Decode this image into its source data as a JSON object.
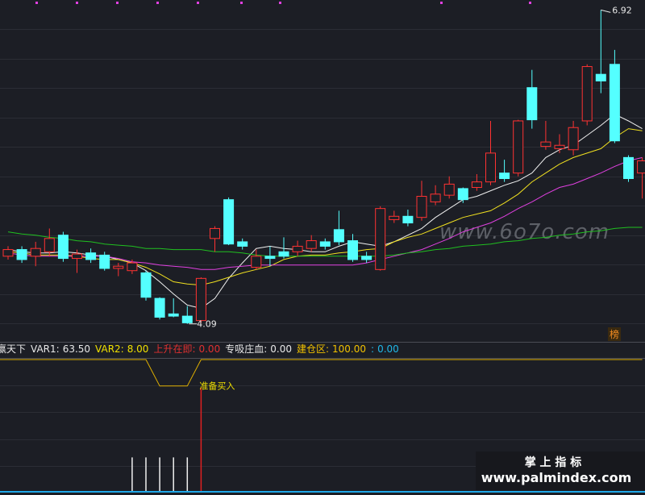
{
  "chart_data": {
    "type": "candlestick",
    "open": [
      4.7,
      4.76,
      4.7,
      4.74,
      4.89,
      4.68,
      4.73,
      4.71,
      4.59,
      4.57,
      4.55,
      4.32,
      4.18,
      4.16,
      4.12,
      4.86,
      5.21,
      4.83,
      4.6,
      4.7,
      4.74,
      4.74,
      4.77,
      4.83,
      4.94,
      4.84,
      4.7,
      4.58,
      5.03,
      5.06,
      5.05,
      5.19,
      5.25,
      5.31,
      5.32,
      5.37,
      5.45,
      5.45,
      6.22,
      5.69,
      5.67,
      5.66,
      5.92,
      6.34,
      6.43,
      5.59,
      5.45
    ],
    "high": [
      4.79,
      4.79,
      4.83,
      4.95,
      4.92,
      4.76,
      4.77,
      4.74,
      4.64,
      4.67,
      4.57,
      4.33,
      4.32,
      4.25,
      4.51,
      4.97,
      5.23,
      4.86,
      4.76,
      4.79,
      4.87,
      4.84,
      4.89,
      4.86,
      5.11,
      4.9,
      4.74,
      5.15,
      5.11,
      5.12,
      5.38,
      5.34,
      5.42,
      5.32,
      5.44,
      5.92,
      5.57,
      5.93,
      6.38,
      5.92,
      5.8,
      5.92,
      6.43,
      6.92,
      6.56,
      5.61,
      5.59
    ],
    "low": [
      4.67,
      4.64,
      4.61,
      4.7,
      4.65,
      4.55,
      4.64,
      4.57,
      4.52,
      4.54,
      4.3,
      4.13,
      4.15,
      4.09,
      4.1,
      4.74,
      4.8,
      4.76,
      4.58,
      4.61,
      4.68,
      4.7,
      4.74,
      4.76,
      4.8,
      4.65,
      4.64,
      4.57,
      5.0,
      4.97,
      5.02,
      5.16,
      5.22,
      5.18,
      5.29,
      5.34,
      5.37,
      5.42,
      5.85,
      5.66,
      5.63,
      5.61,
      5.88,
      6.17,
      5.72,
      5.37,
      5.22
    ],
    "close": [
      4.76,
      4.67,
      4.77,
      4.86,
      4.68,
      4.72,
      4.67,
      4.59,
      4.61,
      4.64,
      4.33,
      4.15,
      4.16,
      4.1,
      4.5,
      4.95,
      4.81,
      4.79,
      4.7,
      4.68,
      4.7,
      4.79,
      4.84,
      4.79,
      4.83,
      4.67,
      4.67,
      5.13,
      5.06,
      5.0,
      5.24,
      5.26,
      5.35,
      5.21,
      5.37,
      5.63,
      5.4,
      5.92,
      5.93,
      5.73,
      5.7,
      5.86,
      6.41,
      6.28,
      5.74,
      5.4,
      5.56
    ],
    "up_color": "#ff3232",
    "down_color": "#54ffff",
    "ylim": [
      4.03,
      7.01
    ],
    "series": [
      {
        "color": "#f0f0f0",
        "values": [
          4.76,
          4.74,
          4.73,
          4.73,
          4.74,
          4.73,
          4.71,
          4.7,
          4.67,
          4.64,
          4.57,
          4.47,
          4.36,
          4.26,
          4.23,
          4.32,
          4.5,
          4.64,
          4.77,
          4.79,
          4.77,
          4.76,
          4.74,
          4.74,
          4.79,
          4.83,
          4.81,
          4.79,
          4.83,
          4.89,
          4.95,
          5.05,
          5.13,
          5.21,
          5.24,
          5.29,
          5.34,
          5.38,
          5.45,
          5.59,
          5.66,
          5.7,
          5.79,
          5.88,
          5.98,
          5.92,
          5.85
        ]
      },
      {
        "color": "#f0e020",
        "values": [
          4.74,
          4.73,
          4.71,
          4.71,
          4.71,
          4.7,
          4.68,
          4.67,
          4.67,
          4.64,
          4.6,
          4.54,
          4.47,
          4.45,
          4.44,
          4.47,
          4.51,
          4.55,
          4.58,
          4.61,
          4.67,
          4.7,
          4.71,
          4.71,
          4.73,
          4.74,
          4.76,
          4.77,
          4.83,
          4.87,
          4.9,
          4.95,
          5.0,
          5.05,
          5.08,
          5.11,
          5.18,
          5.26,
          5.37,
          5.45,
          5.53,
          5.59,
          5.63,
          5.67,
          5.77,
          5.85,
          5.83
        ]
      },
      {
        "color": "#e040e0",
        "values": [
          4.73,
          4.71,
          4.7,
          4.7,
          4.7,
          4.7,
          4.7,
          4.7,
          4.68,
          4.65,
          4.64,
          4.62,
          4.61,
          4.6,
          4.58,
          4.58,
          4.6,
          4.61,
          4.62,
          4.62,
          4.62,
          4.62,
          4.62,
          4.62,
          4.62,
          4.62,
          4.64,
          4.67,
          4.7,
          4.73,
          4.76,
          4.81,
          4.86,
          4.92,
          4.96,
          5.0,
          5.06,
          5.13,
          5.19,
          5.26,
          5.32,
          5.35,
          5.4,
          5.45,
          5.51,
          5.56,
          5.59
        ]
      },
      {
        "color": "#20c020",
        "values": [
          4.92,
          4.9,
          4.89,
          4.87,
          4.86,
          4.84,
          4.83,
          4.81,
          4.8,
          4.79,
          4.77,
          4.77,
          4.76,
          4.76,
          4.76,
          4.74,
          4.74,
          4.73,
          4.71,
          4.7,
          4.7,
          4.7,
          4.7,
          4.7,
          4.7,
          4.7,
          4.7,
          4.7,
          4.71,
          4.73,
          4.74,
          4.76,
          4.77,
          4.79,
          4.8,
          4.81,
          4.83,
          4.84,
          4.86,
          4.87,
          4.89,
          4.9,
          4.92,
          4.93,
          4.95,
          4.96,
          4.96
        ]
      }
    ],
    "watermark": "www.6o7o.com",
    "badge": "榜",
    "indicator": {
      "name": "赢天下",
      "items": [
        {
          "label": "VAR1:",
          "value": "63.50",
          "color": "#e8e8e8"
        },
        {
          "label": "VAR2:",
          "value": "8.00",
          "color": "#f0e000"
        },
        {
          "label": "上升在即:",
          "value": "0.00",
          "color": "#e03030"
        },
        {
          "label": "专吸庄血:",
          "value": "0.00",
          "color": "#e8e8e8"
        },
        {
          "label": "建仓区:",
          "value": "100.00",
          "color": "#f0c000"
        },
        {
          "label": ":",
          "value": "0.00",
          "color": "#20b8e8"
        }
      ],
      "ylim": [
        0,
        100
      ],
      "line": {
        "color": "#e0b000",
        "values": [
          100,
          100,
          100,
          100,
          100,
          100,
          100,
          100,
          100,
          100,
          100,
          80,
          80,
          80,
          100,
          100,
          100,
          100,
          100,
          100,
          100,
          100,
          100,
          100,
          100,
          100,
          100,
          100,
          100,
          100,
          100,
          100,
          100,
          100,
          100,
          100,
          100,
          100,
          100,
          100,
          100,
          100,
          100,
          100,
          100,
          100,
          100
        ]
      },
      "bars": [
        {
          "color": "#f0f0f0",
          "values": [
            null,
            null,
            null,
            null,
            null,
            null,
            null,
            null,
            null,
            26,
            26,
            26,
            26,
            26,
            null,
            null,
            null,
            null,
            null,
            null,
            null,
            null,
            null,
            null,
            null,
            null,
            null,
            null,
            null,
            null,
            null,
            null,
            null,
            null,
            null,
            null,
            null,
            null,
            null,
            null,
            null,
            null,
            null,
            null,
            null,
            null,
            null
          ]
        },
        {
          "color": "#e02020",
          "values": [
            null,
            null,
            null,
            null,
            null,
            null,
            null,
            null,
            null,
            null,
            null,
            null,
            null,
            null,
            79,
            null,
            null,
            null,
            null,
            null,
            null,
            null,
            null,
            null,
            null,
            null,
            null,
            null,
            null,
            null,
            null,
            null,
            null,
            null,
            null,
            null,
            null,
            null,
            null,
            null,
            null,
            null,
            null,
            null,
            null,
            null,
            null
          ]
        }
      ],
      "annotation": "准备买入"
    },
    "footer": {
      "title": "掌 上 指 标",
      "url": "www.palmindex.com"
    }
  }
}
